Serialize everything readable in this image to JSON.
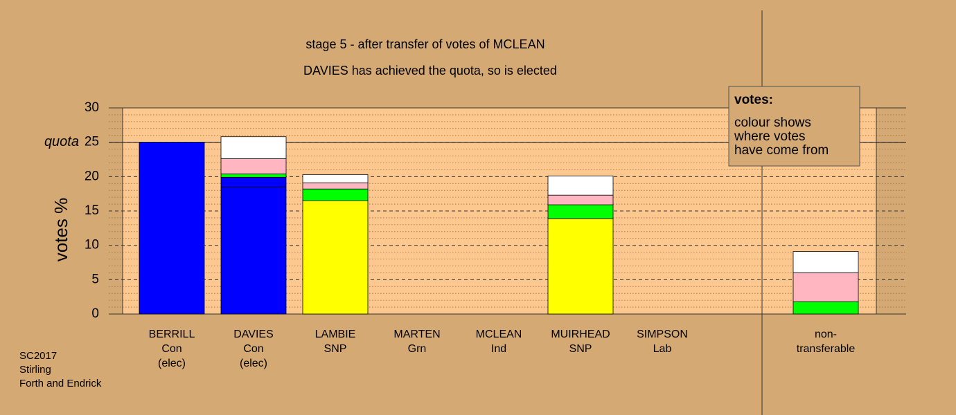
{
  "chart_data": {
    "type": "stacked_bar",
    "title": "stage 5 - after transfer of votes of MCLEAN",
    "subtitle": "DAVIES has achieved the quota, so is elected",
    "ylabel": "votes %",
    "categories": [
      [
        "BERRILL",
        "Con",
        "(elec)"
      ],
      [
        "DAVIES",
        "Con",
        "(elec)"
      ],
      [
        "LAMBIE",
        "SNP"
      ],
      [
        "MARTEN",
        "Grn"
      ],
      [
        "MCLEAN",
        "Ind"
      ],
      [
        "MUIRHEAD",
        "SNP"
      ],
      [
        "SIMPSON",
        "Lab"
      ],
      null,
      [
        "non-",
        "transferable"
      ]
    ],
    "series": [
      {
        "color": "#0000ff",
        "values": [
          25,
          18.5,
          null,
          null,
          null,
          null,
          null,
          null,
          null
        ]
      },
      {
        "color": "#0000ff",
        "values": [
          null,
          1.4,
          null,
          null,
          null,
          null,
          null,
          null,
          null
        ]
      },
      {
        "color": "#ffff00",
        "values": [
          null,
          null,
          16.5,
          null,
          null,
          13.9,
          null,
          null,
          null
        ]
      },
      {
        "color": "#00ff00",
        "values": [
          null,
          0.5,
          1.7,
          null,
          null,
          2.0,
          null,
          null,
          1.8
        ]
      },
      {
        "color": "#ffb6c1",
        "values": [
          null,
          2.2,
          0.9,
          null,
          null,
          1.4,
          null,
          null,
          4.2
        ]
      },
      {
        "color": "#ffffff",
        "values": [
          null,
          3.2,
          1.2,
          null,
          null,
          2.8,
          null,
          null,
          3.1
        ]
      }
    ],
    "ylim": [
      0,
      30
    ],
    "yticks": [
      0,
      5,
      10,
      15,
      20,
      25,
      30
    ],
    "minor_yticks": [
      1,
      2,
      3,
      4,
      6,
      7,
      8,
      9,
      11,
      12,
      13,
      14,
      16,
      17,
      18,
      19,
      21,
      22,
      23,
      24,
      26,
      27,
      28,
      29
    ],
    "grid": true,
    "quota": 25,
    "quota_label": "quota",
    "legend": [
      "votes:",
      "colour shows",
      "where votes",
      "have come from"
    ],
    "footer": [
      "SC2017",
      "Stirling",
      "Forth and Endrick"
    ]
  }
}
